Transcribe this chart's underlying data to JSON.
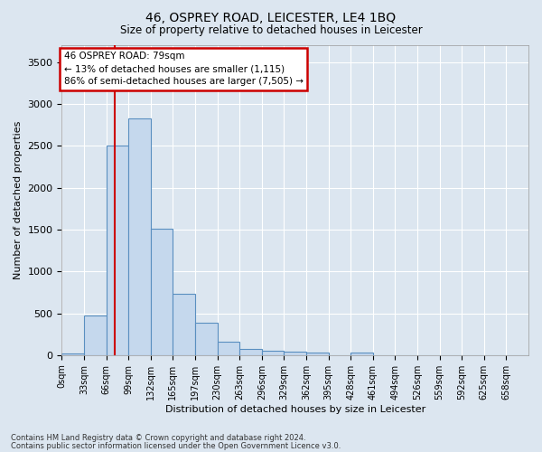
{
  "title": "46, OSPREY ROAD, LEICESTER, LE4 1BQ",
  "subtitle": "Size of property relative to detached houses in Leicester",
  "xlabel": "Distribution of detached houses by size in Leicester",
  "ylabel": "Number of detached properties",
  "bar_color": "#c5d8ed",
  "bar_edge_color": "#5a8fc0",
  "bin_labels": [
    "0sqm",
    "33sqm",
    "66sqm",
    "99sqm",
    "132sqm",
    "165sqm",
    "197sqm",
    "230sqm",
    "263sqm",
    "296sqm",
    "329sqm",
    "362sqm",
    "395sqm",
    "428sqm",
    "461sqm",
    "494sqm",
    "526sqm",
    "559sqm",
    "592sqm",
    "625sqm",
    "658sqm"
  ],
  "bar_heights": [
    20,
    470,
    2500,
    2830,
    1510,
    730,
    385,
    155,
    70,
    55,
    40,
    30,
    0,
    30,
    0,
    0,
    0,
    0,
    0,
    0,
    0
  ],
  "property_line_x": 79,
  "bin_width": 33,
  "ylim": [
    0,
    3700
  ],
  "yticks": [
    0,
    500,
    1000,
    1500,
    2000,
    2500,
    3000,
    3500
  ],
  "annotation_title": "46 OSPREY ROAD: 79sqm",
  "annotation_line1": "← 13% of detached houses are smaller (1,115)",
  "annotation_line2": "86% of semi-detached houses are larger (7,505) →",
  "annotation_box_color": "#ffffff",
  "annotation_box_edge": "#cc0000",
  "vline_color": "#cc0000",
  "footer1": "Contains HM Land Registry data © Crown copyright and database right 2024.",
  "footer2": "Contains public sector information licensed under the Open Government Licence v3.0.",
  "background_color": "#dce6f0",
  "plot_bg_color": "#dce6f0",
  "grid_color": "#ffffff"
}
